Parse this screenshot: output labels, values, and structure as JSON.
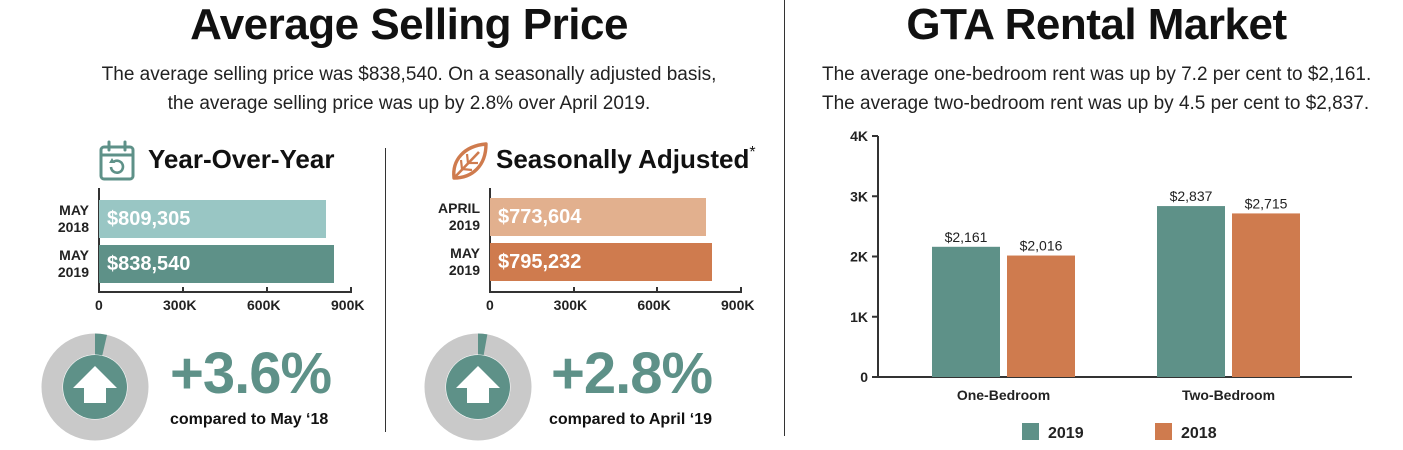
{
  "selling": {
    "title": "Average Selling Price",
    "sub1": "The average selling price was $838,540. On a seasonally adjusted basis,",
    "sub2": "the average selling price was up by 2.8% over April 2019."
  },
  "yoy": {
    "heading": "Year-Over-Year",
    "icon": "calendar-refresh-icon",
    "pct": "+3.6%",
    "compare": "compared to May ‘18",
    "progress_fraction": 0.036
  },
  "sa": {
    "heading": "Seasonally Adjusted",
    "asterisk": "*",
    "icon": "leaf-icon",
    "pct": "+2.8%",
    "compare": "compared to  April ‘19",
    "progress_fraction": 0.028
  },
  "rental": {
    "title": "GTA Rental Market",
    "sub1": "The average one-bedroom rent was up by 7.2 per cent to $2,161.",
    "sub2": "The average two-bedroom rent was up by 4.5 per cent to $2,837."
  },
  "colors": {
    "teal_light": "#99c6c4",
    "teal_dark": "#5e9188",
    "orange_light": "#e2b08e",
    "orange_dark": "#cf7b4e",
    "ring_gray": "#c9c9c9"
  },
  "chart_data": [
    {
      "type": "bar",
      "orientation": "horizontal",
      "categories": [
        [
          "MAY",
          "2018"
        ],
        [
          "MAY",
          "2019"
        ]
      ],
      "values": [
        809305,
        838540
      ],
      "value_labels": [
        "$809,305",
        "$838,540"
      ],
      "xlim": [
        0,
        900000
      ],
      "xticks": [
        0,
        300000,
        600000,
        900000
      ],
      "xtick_labels": [
        "0",
        "300K",
        "600K",
        "900K"
      ],
      "bar_colors": [
        "#99c6c4",
        "#5e9188"
      ]
    },
    {
      "type": "bar",
      "orientation": "horizontal",
      "categories": [
        [
          "APRIL",
          "2019"
        ],
        [
          "MAY",
          "2019"
        ]
      ],
      "values": [
        773604,
        795232
      ],
      "value_labels": [
        "$773,604",
        "$795,232"
      ],
      "xlim": [
        0,
        900000
      ],
      "xticks": [
        0,
        300000,
        600000,
        900000
      ],
      "xtick_labels": [
        "0",
        "300K",
        "600K",
        "900K"
      ],
      "bar_colors": [
        "#e2b08e",
        "#cf7b4e"
      ]
    },
    {
      "type": "bar",
      "orientation": "vertical",
      "categories": [
        "One-Bedroom",
        "Two-Bedroom"
      ],
      "series": [
        {
          "name": "2019",
          "values": [
            2161,
            2837
          ],
          "labels": [
            "$2,161",
            "$2,837"
          ],
          "color": "#5e9188"
        },
        {
          "name": "2018",
          "values": [
            2016,
            2715
          ],
          "labels": [
            "$2,016",
            "$2,715"
          ],
          "color": "#cf7b4e"
        }
      ],
      "ylim": [
        0,
        4000
      ],
      "yticks": [
        0,
        1000,
        2000,
        3000,
        4000
      ],
      "ytick_labels": [
        "0",
        "1K",
        "2K",
        "3K",
        "4K"
      ],
      "legend_position": "bottom"
    }
  ]
}
